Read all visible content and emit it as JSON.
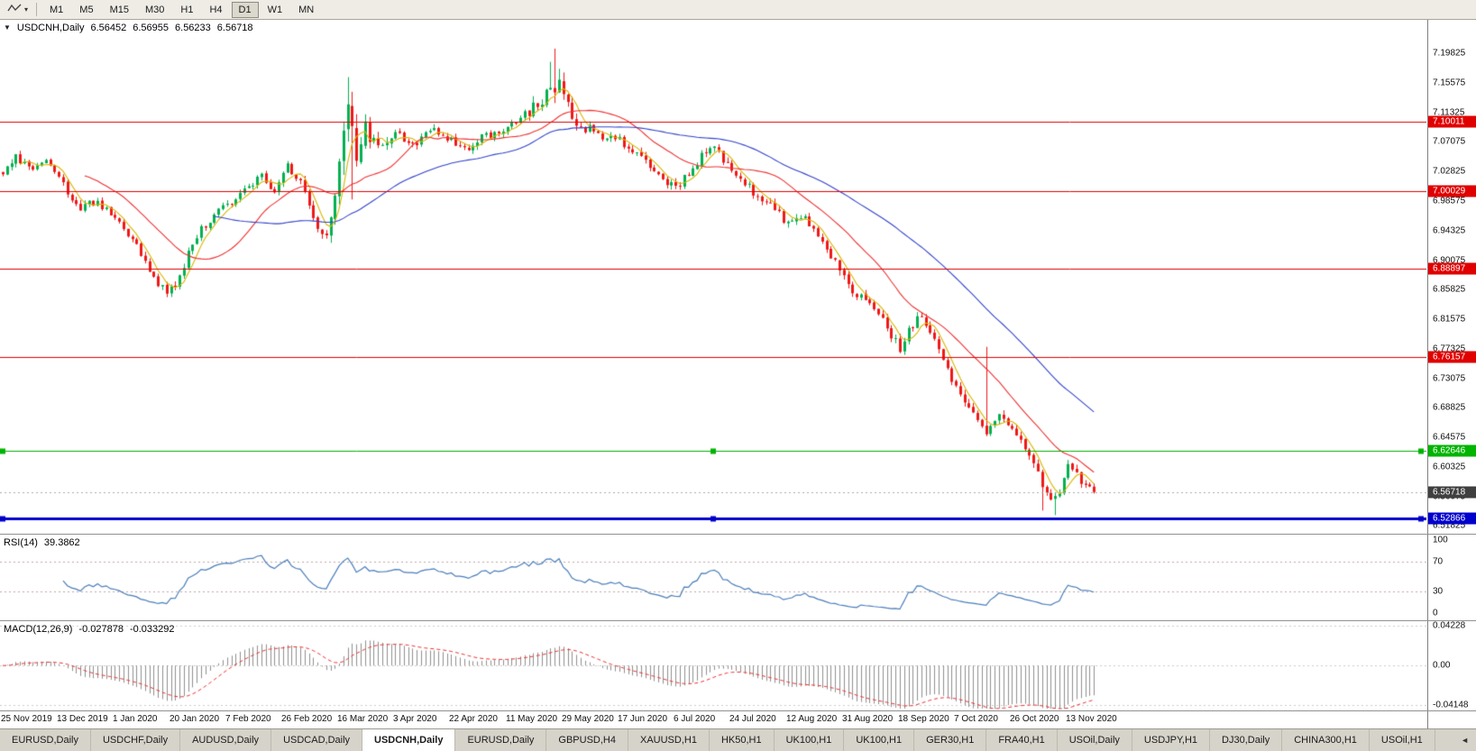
{
  "toolbar": {
    "chart_dropdown": {
      "icon": "zigzag-line-icon",
      "caret": "▾"
    },
    "timeframes": [
      {
        "label": "M1",
        "active": false
      },
      {
        "label": "M5",
        "active": false
      },
      {
        "label": "M15",
        "active": false
      },
      {
        "label": "M30",
        "active": false
      },
      {
        "label": "H1",
        "active": false
      },
      {
        "label": "H4",
        "active": false
      },
      {
        "label": "D1",
        "active": true
      },
      {
        "label": "W1",
        "active": false
      },
      {
        "label": "MN",
        "active": false
      }
    ]
  },
  "header": {
    "collapse_icon": "▼",
    "symbol": "USDCNH,Daily",
    "open": "6.56452",
    "high": "6.56955",
    "low": "6.56233",
    "close": "6.56718"
  },
  "chart_data": {
    "type": "candlestick",
    "symbol": "USDCNH",
    "timeframe": "Daily",
    "bars": 254,
    "seed": 20201113,
    "data_fraction": 0.768,
    "price_axis": {
      "labels": [
        "7.19825",
        "7.15575",
        "7.11325",
        "7.07075",
        "7.02825",
        "6.98575",
        "6.94325",
        "6.90075",
        "6.85825",
        "6.81575",
        "6.77325",
        "6.73075",
        "6.68825",
        "6.64575",
        "6.60325",
        "6.56075",
        "6.51825"
      ],
      "p_top": 7.2464,
      "p_bottom": 6.5072
    },
    "anchors": [
      [
        0,
        7.028,
        0.012
      ],
      [
        3,
        7.048,
        0.012
      ],
      [
        6,
        7.034,
        0.01
      ],
      [
        10,
        7.042,
        0.01
      ],
      [
        14,
        7.012,
        0.011
      ],
      [
        17,
        6.976,
        0.012
      ],
      [
        22,
        6.984,
        0.009
      ],
      [
        26,
        6.962,
        0.009
      ],
      [
        30,
        6.93,
        0.01
      ],
      [
        34,
        6.884,
        0.012
      ],
      [
        38,
        6.854,
        0.012
      ],
      [
        41,
        6.872,
        0.012
      ],
      [
        44,
        6.93,
        0.013
      ],
      [
        48,
        6.96,
        0.01
      ],
      [
        52,
        6.982,
        0.01
      ],
      [
        56,
        7.0,
        0.01
      ],
      [
        60,
        7.022,
        0.01
      ],
      [
        63,
        6.994,
        0.01
      ],
      [
        66,
        7.04,
        0.013
      ],
      [
        69,
        7.012,
        0.012
      ],
      [
        72,
        6.954,
        0.013
      ],
      [
        75,
        6.94,
        0.015
      ],
      [
        77,
        6.99,
        0.025
      ],
      [
        80,
        7.112,
        0.045
      ],
      [
        82,
        7.058,
        0.038
      ],
      [
        84,
        7.094,
        0.028
      ],
      [
        87,
        7.064,
        0.018
      ],
      [
        91,
        7.084,
        0.014
      ],
      [
        95,
        7.064,
        0.012
      ],
      [
        100,
        7.092,
        0.012
      ],
      [
        104,
        7.072,
        0.012
      ],
      [
        108,
        7.062,
        0.011
      ],
      [
        112,
        7.08,
        0.012
      ],
      [
        117,
        7.092,
        0.012
      ],
      [
        121,
        7.108,
        0.014
      ],
      [
        125,
        7.134,
        0.02
      ],
      [
        128,
        7.158,
        0.032
      ],
      [
        131,
        7.118,
        0.02
      ],
      [
        134,
        7.094,
        0.014
      ],
      [
        138,
        7.082,
        0.012
      ],
      [
        143,
        7.072,
        0.012
      ],
      [
        147,
        7.054,
        0.012
      ],
      [
        152,
        7.022,
        0.012
      ],
      [
        156,
        7.006,
        0.012
      ],
      [
        160,
        7.034,
        0.012
      ],
      [
        164,
        7.064,
        0.012
      ],
      [
        169,
        7.034,
        0.012
      ],
      [
        173,
        7.004,
        0.012
      ],
      [
        177,
        6.984,
        0.012
      ],
      [
        182,
        6.954,
        0.012
      ],
      [
        186,
        6.962,
        0.01
      ],
      [
        190,
        6.924,
        0.012
      ],
      [
        195,
        6.874,
        0.014
      ],
      [
        199,
        6.846,
        0.012
      ],
      [
        203,
        6.824,
        0.012
      ],
      [
        208,
        6.776,
        0.014
      ],
      [
        212,
        6.822,
        0.014
      ],
      [
        216,
        6.794,
        0.012
      ],
      [
        221,
        6.714,
        0.014
      ],
      [
        225,
        6.684,
        0.012
      ],
      [
        228,
        6.654,
        0.012
      ],
      [
        231,
        6.674,
        0.012
      ],
      [
        234,
        6.664,
        0.012
      ],
      [
        238,
        6.624,
        0.014
      ],
      [
        241,
        6.576,
        0.015
      ],
      [
        244,
        6.556,
        0.014
      ],
      [
        247,
        6.604,
        0.013
      ],
      [
        250,
        6.584,
        0.011
      ],
      [
        253,
        6.56718,
        0.009
      ]
    ],
    "spikes": [
      {
        "bar": 80,
        "high": 7.164
      },
      {
        "bar": 81,
        "low": 6.988
      },
      {
        "bar": 127,
        "high": 7.186
      },
      {
        "bar": 128,
        "high": 7.205
      },
      {
        "bar": 129,
        "high": 7.176
      },
      {
        "bar": 228,
        "high": 6.776
      },
      {
        "bar": 241,
        "low": 6.5405
      },
      {
        "bar": 244,
        "low": 6.534
      }
    ],
    "hlines": [
      {
        "price": 7.10011,
        "label": "7.10011",
        "color": "#e00000",
        "width": 1,
        "handles": false
      },
      {
        "price": 7.00029,
        "label": "7.00029",
        "color": "#e00000",
        "width": 1,
        "handles": false
      },
      {
        "price": 6.88897,
        "label": "6.88897",
        "color": "#e00000",
        "width": 1,
        "handles": false
      },
      {
        "price": 6.76157,
        "label": "6.76157",
        "color": "#e00000",
        "width": 1,
        "handles": false
      },
      {
        "price": 6.62646,
        "label": "6.62646",
        "color": "#00b400",
        "width": 1,
        "handles": true
      },
      {
        "price": 6.52866,
        "label": "6.52866",
        "color": "#0000cc",
        "width": 3,
        "handles": true
      }
    ],
    "current_price": {
      "value": 6.56718,
      "label": "6.56718",
      "badge_color": "#3f3f3f"
    },
    "moving_averages": [
      {
        "period": 5,
        "color": "#d8b700",
        "name": "fast-ma"
      },
      {
        "period": 20,
        "color": "#f03030",
        "name": "mid-ma"
      },
      {
        "period": 50,
        "color": "#3344cc",
        "name": "slow-ma"
      }
    ],
    "candle_colors": {
      "up": "#00b050",
      "down": "#f01818"
    },
    "x_ticks": [
      {
        "bar": 0,
        "label": "25 Nov 2019"
      },
      {
        "bar": 13,
        "label": "13 Dec 2019"
      },
      {
        "bar": 26,
        "label": "1 Jan 2020"
      },
      {
        "bar": 39,
        "label": "20 Jan 2020"
      },
      {
        "bar": 52,
        "label": "7 Feb 2020"
      },
      {
        "bar": 65,
        "label": "26 Feb 2020"
      },
      {
        "bar": 78,
        "label": "16 Mar 2020"
      },
      {
        "bar": 91,
        "label": "3 Apr 2020"
      },
      {
        "bar": 104,
        "label": "22 Apr 2020"
      },
      {
        "bar": 117,
        "label": "11 May 2020"
      },
      {
        "bar": 130,
        "label": "29 May 2020"
      },
      {
        "bar": 143,
        "label": "17 Jun 2020"
      },
      {
        "bar": 156,
        "label": "6 Jul 2020"
      },
      {
        "bar": 169,
        "label": "24 Jul 2020"
      },
      {
        "bar": 182,
        "label": "12 Aug 2020"
      },
      {
        "bar": 195,
        "label": "31 Aug 2020"
      },
      {
        "bar": 208,
        "label": "18 Sep 2020"
      },
      {
        "bar": 221,
        "label": "7 Oct 2020"
      },
      {
        "bar": 234,
        "label": "26 Oct 2020"
      },
      {
        "bar": 247,
        "label": "13 Nov 2020"
      }
    ]
  },
  "rsi_panel": {
    "title": "RSI(14)",
    "value": "39.3862",
    "period": 14,
    "line_color": "#4a7ebb",
    "levels": [
      {
        "value": 100,
        "label": "100"
      },
      {
        "value": 70,
        "label": "70"
      },
      {
        "value": 30,
        "label": "30"
      },
      {
        "value": 0,
        "label": "0"
      }
    ],
    "dashed_levels": [
      70,
      30
    ]
  },
  "macd_panel": {
    "title": "MACD(12,26,9)",
    "value_main": "-0.027878",
    "value_signal": "-0.033292",
    "params": [
      12,
      26,
      9
    ],
    "hist_color": "#8f8f8f",
    "signal_color": "#f03030",
    "levels": [
      {
        "value": 0.04228,
        "label": "0.04228"
      },
      {
        "value": 0,
        "label": "0.00"
      },
      {
        "value": -0.04148,
        "label": "-0.04148"
      }
    ],
    "range": {
      "top": 0.047,
      "bottom": -0.0475
    }
  },
  "tabs": {
    "items": [
      {
        "label": "EURUSD,Daily",
        "active": false
      },
      {
        "label": "USDCHF,Daily",
        "active": false
      },
      {
        "label": "AUDUSD,Daily",
        "active": false
      },
      {
        "label": "USDCAD,Daily",
        "active": false
      },
      {
        "label": "USDCNH,Daily",
        "active": true
      },
      {
        "label": "EURUSD,Daily",
        "active": false
      },
      {
        "label": "GBPUSD,H4",
        "active": false
      },
      {
        "label": "XAUUSD,H1",
        "active": false
      },
      {
        "label": "HK50,H1",
        "active": false
      },
      {
        "label": "UK100,H1",
        "active": false
      },
      {
        "label": "UK100,H1",
        "active": false
      },
      {
        "label": "GER30,H1",
        "active": false
      },
      {
        "label": "FRA40,H1",
        "active": false
      },
      {
        "label": "USOil,Daily",
        "active": false
      },
      {
        "label": "USDJPY,H1",
        "active": false
      },
      {
        "label": "DJ30,Daily",
        "active": false
      },
      {
        "label": "CHINA300,H1",
        "active": false
      },
      {
        "label": "USOil,H1",
        "active": false
      }
    ],
    "scroll_arrow": "◄"
  }
}
